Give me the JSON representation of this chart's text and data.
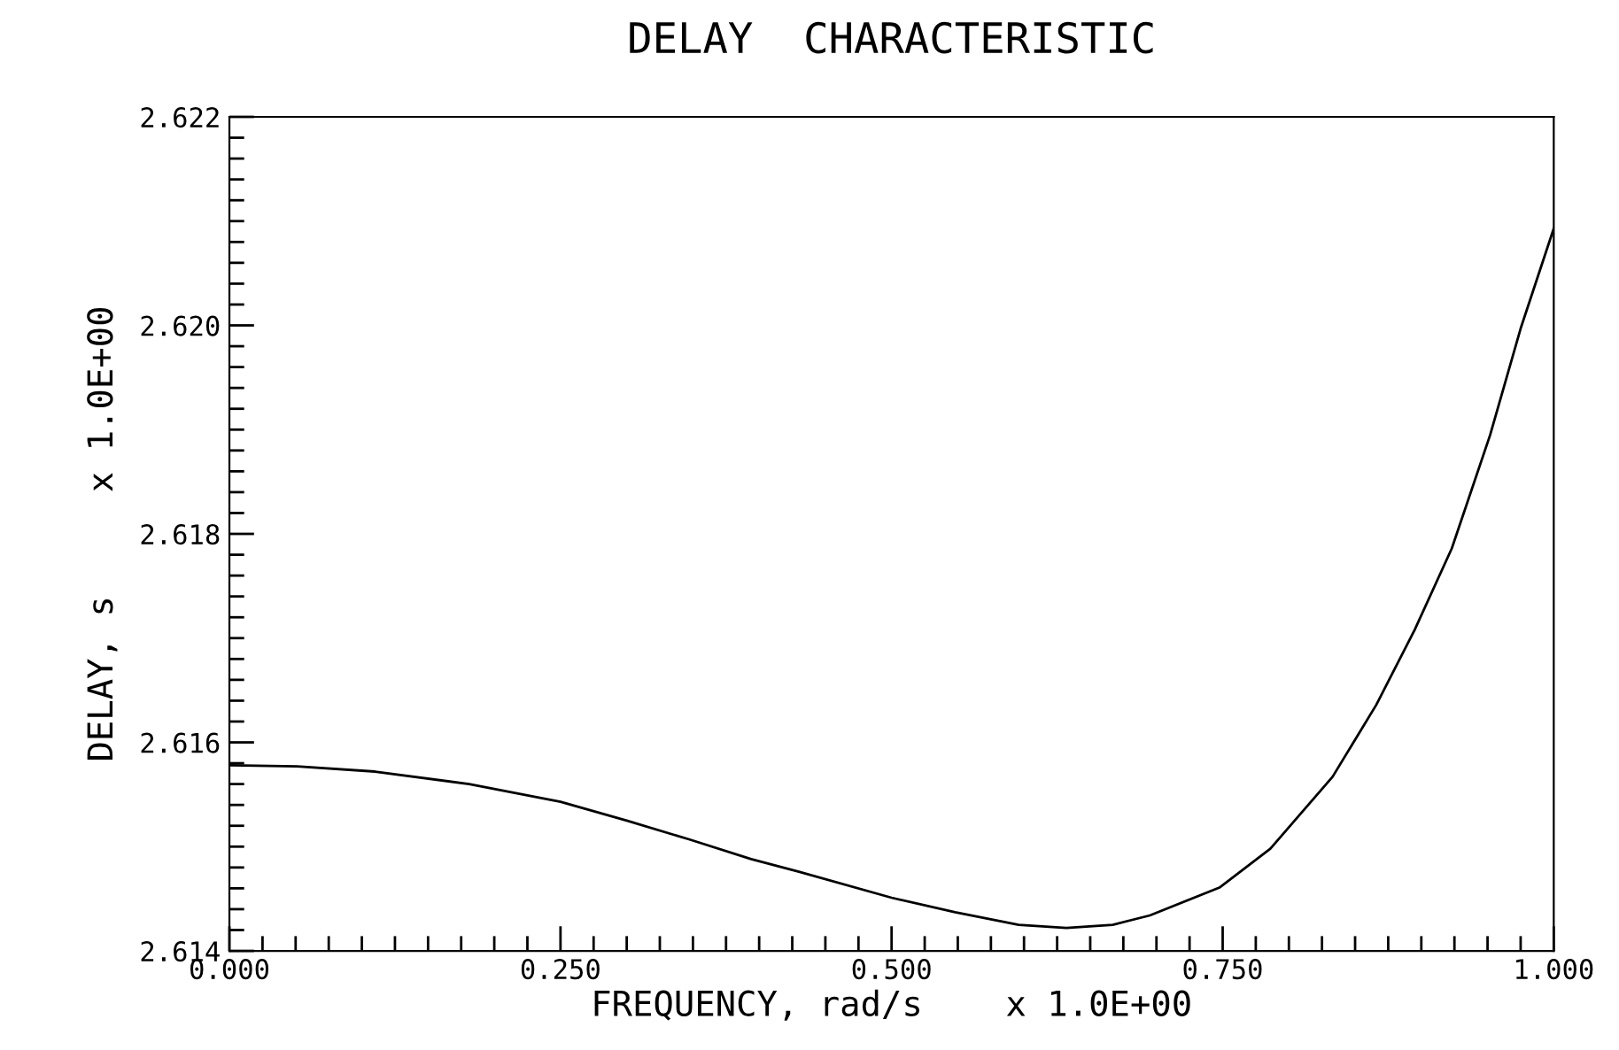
{
  "chart_data": {
    "type": "line",
    "title": "DELAY  CHARACTERISTIC",
    "xlabel": "FREQUENCY, rad/s    x 1.0E+00",
    "ylabel": "DELAY, s     x 1.0E+00",
    "x": [
      0,
      0.051,
      0.11,
      0.181,
      0.25,
      0.3,
      0.347,
      0.394,
      0.43,
      0.5,
      0.548,
      0.596,
      0.632,
      0.667,
      0.695,
      0.748,
      0.786,
      0.833,
      0.866,
      0.895,
      0.923,
      0.952,
      0.975,
      1.0
    ],
    "series": [
      {
        "color": "#000000",
        "values": [
          2.61578,
          2.61577,
          2.61572,
          2.6156,
          2.61543,
          2.61525,
          2.61507,
          2.61488,
          2.61476,
          2.61451,
          2.61437,
          2.61425,
          2.61422,
          2.61425,
          2.61434,
          2.61461,
          2.61498,
          2.61567,
          2.61636,
          2.61708,
          2.61786,
          2.61895,
          2.61997,
          2.62093
        ]
      }
    ],
    "xlim": [
      0,
      1
    ],
    "ylim": [
      2.614,
      2.622
    ],
    "xticks": [
      {
        "value": 0,
        "label": "0.000"
      },
      {
        "value": 0.025,
        "label": null
      },
      {
        "value": 0.05,
        "label": null
      },
      {
        "value": 0.075,
        "label": null
      },
      {
        "value": 0.1,
        "label": null
      },
      {
        "value": 0.125,
        "label": null
      },
      {
        "value": 0.15,
        "label": null
      },
      {
        "value": 0.175,
        "label": null
      },
      {
        "value": 0.2,
        "label": null
      },
      {
        "value": 0.225,
        "label": null
      },
      {
        "value": 0.25,
        "label": "0.250"
      },
      {
        "value": 0.275,
        "label": null
      },
      {
        "value": 0.3,
        "label": null
      },
      {
        "value": 0.325,
        "label": null
      },
      {
        "value": 0.35,
        "label": null
      },
      {
        "value": 0.375,
        "label": null
      },
      {
        "value": 0.4,
        "label": null
      },
      {
        "value": 0.425,
        "label": null
      },
      {
        "value": 0.45,
        "label": null
      },
      {
        "value": 0.475,
        "label": null
      },
      {
        "value": 0.5,
        "label": "0.500"
      },
      {
        "value": 0.525,
        "label": null
      },
      {
        "value": 0.55,
        "label": null
      },
      {
        "value": 0.575,
        "label": null
      },
      {
        "value": 0.6,
        "label": null
      },
      {
        "value": 0.625,
        "label": null
      },
      {
        "value": 0.65,
        "label": null
      },
      {
        "value": 0.675,
        "label": null
      },
      {
        "value": 0.7,
        "label": null
      },
      {
        "value": 0.725,
        "label": null
      },
      {
        "value": 0.75,
        "label": "0.750"
      },
      {
        "value": 0.775,
        "label": null
      },
      {
        "value": 0.8,
        "label": null
      },
      {
        "value": 0.825,
        "label": null
      },
      {
        "value": 0.85,
        "label": null
      },
      {
        "value": 0.875,
        "label": null
      },
      {
        "value": 0.9,
        "label": null
      },
      {
        "value": 0.925,
        "label": null
      },
      {
        "value": 0.95,
        "label": null
      },
      {
        "value": 0.975,
        "label": null
      },
      {
        "value": 1.0,
        "label": "1.000"
      }
    ],
    "yticks": [
      {
        "value": 2.614,
        "label": "2.614"
      },
      {
        "value": 2.6142,
        "label": null
      },
      {
        "value": 2.6144,
        "label": null
      },
      {
        "value": 2.6146,
        "label": null
      },
      {
        "value": 2.6148,
        "label": null
      },
      {
        "value": 2.615,
        "label": null
      },
      {
        "value": 2.6152,
        "label": null
      },
      {
        "value": 2.6154,
        "label": null
      },
      {
        "value": 2.6156,
        "label": null
      },
      {
        "value": 2.6158,
        "label": null
      },
      {
        "value": 2.616,
        "label": "2.616"
      },
      {
        "value": 2.6162,
        "label": null
      },
      {
        "value": 2.6164,
        "label": null
      },
      {
        "value": 2.6166,
        "label": null
      },
      {
        "value": 2.6168,
        "label": null
      },
      {
        "value": 2.617,
        "label": null
      },
      {
        "value": 2.6172,
        "label": null
      },
      {
        "value": 2.6174,
        "label": null
      },
      {
        "value": 2.6176,
        "label": null
      },
      {
        "value": 2.6178,
        "label": null
      },
      {
        "value": 2.618,
        "label": "2.618"
      },
      {
        "value": 2.6182,
        "label": null
      },
      {
        "value": 2.6184,
        "label": null
      },
      {
        "value": 2.6186,
        "label": null
      },
      {
        "value": 2.6188,
        "label": null
      },
      {
        "value": 2.619,
        "label": null
      },
      {
        "value": 2.6192,
        "label": null
      },
      {
        "value": 2.6194,
        "label": null
      },
      {
        "value": 2.6196,
        "label": null
      },
      {
        "value": 2.6198,
        "label": null
      },
      {
        "value": 2.62,
        "label": "2.620"
      },
      {
        "value": 2.6202,
        "label": null
      },
      {
        "value": 2.6204,
        "label": null
      },
      {
        "value": 2.6206,
        "label": null
      },
      {
        "value": 2.6208,
        "label": null
      },
      {
        "value": 2.621,
        "label": null
      },
      {
        "value": 2.6212,
        "label": null
      },
      {
        "value": 2.6214,
        "label": null
      },
      {
        "value": 2.6216,
        "label": null
      },
      {
        "value": 2.6218,
        "label": null
      },
      {
        "value": 2.622,
        "label": "2.622"
      }
    ],
    "grid": false,
    "legend": false,
    "marker": "none",
    "line_style": "solid"
  }
}
